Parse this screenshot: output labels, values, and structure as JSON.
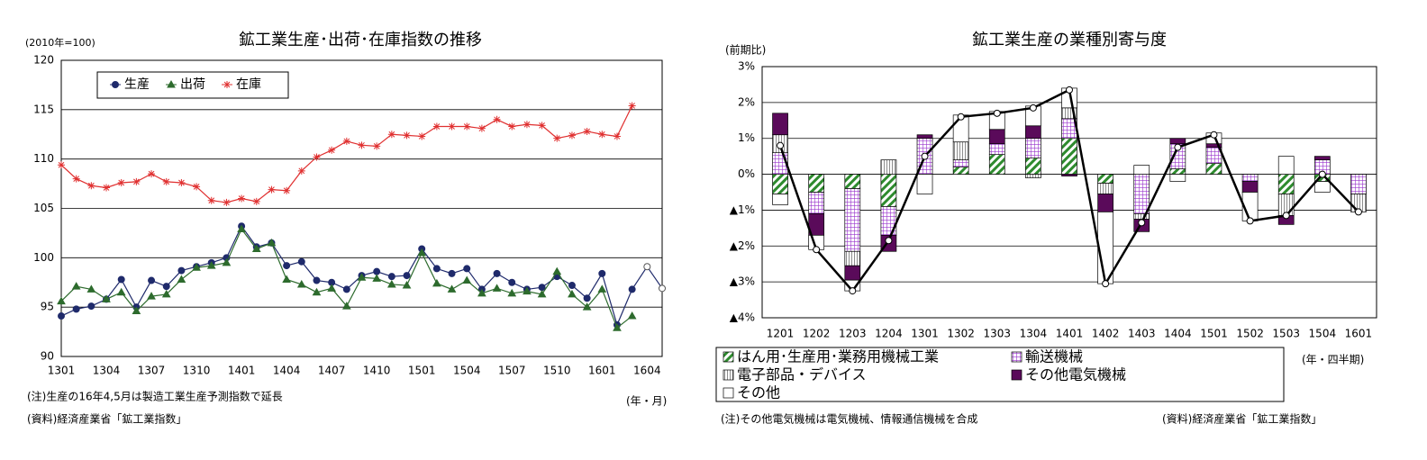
{
  "chart_data": [
    {
      "type": "line",
      "title": "鉱工業生産･出荷･在庫指数の推移",
      "y_label": "(2010年=100)",
      "x_label": "(年・月)",
      "notes": [
        "(注)生産の16年4,5月は製造工業生産予測指数で延長",
        "(資料)経済産業省「鉱工業指数」"
      ],
      "categories": [
        "1301",
        null,
        null,
        "1304",
        null,
        null,
        "1307",
        null,
        null,
        "1310",
        null,
        null,
        "1401",
        null,
        null,
        "1404",
        null,
        null,
        "1407",
        null,
        null,
        "1410",
        null,
        null,
        "1501",
        null,
        null,
        "1504",
        null,
        null,
        "1507",
        null,
        null,
        "1510",
        null,
        null,
        "1601",
        null,
        null,
        "1604",
        null
      ],
      "open_markers_from": "1604",
      "ylim": [
        90,
        120
      ],
      "yticks": [
        90,
        95,
        100,
        105,
        110,
        115,
        120
      ],
      "grid": true,
      "legend": "top-left",
      "series": [
        {
          "name": "生産",
          "color": "#1f2a6b",
          "marker": "circle",
          "values": [
            94.1,
            94.8,
            95.1,
            95.8,
            97.8,
            95.0,
            97.7,
            97.1,
            98.7,
            99.1,
            99.5,
            100.0,
            103.2,
            101.1,
            101.5,
            99.2,
            99.6,
            97.7,
            97.5,
            96.8,
            98.2,
            98.6,
            98.1,
            98.2,
            100.9,
            98.9,
            98.4,
            98.9,
            96.8,
            98.4,
            97.5,
            96.8,
            97.0,
            98.1,
            97.2,
            95.9,
            98.4,
            93.2,
            96.8,
            99.1,
            96.9
          ]
        },
        {
          "name": "出荷",
          "color": "#2d6b2d",
          "marker": "triangle",
          "values": [
            95.6,
            97.1,
            96.8,
            95.8,
            96.5,
            94.6,
            96.1,
            96.3,
            97.8,
            99.0,
            99.2,
            99.5,
            102.9,
            100.9,
            101.5,
            97.8,
            97.3,
            96.5,
            96.9,
            95.1,
            98.0,
            97.9,
            97.3,
            97.2,
            100.5,
            97.4,
            96.8,
            97.7,
            96.4,
            96.9,
            96.4,
            96.6,
            96.3,
            98.6,
            96.3,
            95.0,
            96.8,
            92.9,
            94.1,
            null,
            null
          ]
        },
        {
          "name": "在庫",
          "color": "#e03030",
          "marker": "star",
          "values": [
            109.4,
            108.0,
            107.3,
            107.1,
            107.6,
            107.7,
            108.5,
            107.7,
            107.6,
            107.2,
            105.8,
            105.6,
            106.0,
            105.7,
            106.9,
            106.8,
            108.8,
            110.2,
            110.9,
            111.8,
            111.4,
            111.3,
            112.5,
            112.4,
            112.3,
            113.3,
            113.3,
            113.3,
            113.1,
            114.0,
            113.3,
            113.5,
            113.4,
            112.1,
            112.4,
            112.8,
            112.5,
            112.3,
            115.4,
            null,
            null
          ]
        }
      ]
    },
    {
      "type": "stacked_bar",
      "title": "鉱工業生産の業種別寄与度",
      "y_label": "(前期比)",
      "x_label": "(年・四半期)",
      "notes": [
        "(注)その他電気機械は電気機械、情報通信機械を合成",
        "(資料)経済産業省「鉱工業指数」"
      ],
      "categories": [
        "1201",
        "1202",
        "1203",
        "1204",
        "1301",
        "1302",
        "1303",
        "1304",
        "1401",
        "1402",
        "1403",
        "1404",
        "1501",
        "1502",
        "1503",
        "1504",
        "1601"
      ],
      "ylim": [
        -4,
        3
      ],
      "yticks": [
        {
          "value": -4,
          "label": "▲4%"
        },
        {
          "value": -3,
          "label": "▲3%"
        },
        {
          "value": -2,
          "label": "▲2%"
        },
        {
          "value": -1,
          "label": "▲1%"
        },
        {
          "value": 0,
          "label": "0%"
        },
        {
          "value": 1,
          "label": "1%"
        },
        {
          "value": 2,
          "label": "2%"
        },
        {
          "value": 3,
          "label": "3%"
        }
      ],
      "grid": true,
      "legend": "bottom",
      "series": [
        {
          "name": "はん用･生産用･業務用機械工業",
          "color": "#2e8b2e",
          "pattern": "diagonal",
          "values": [
            -0.55,
            -0.5,
            -0.4,
            -0.9,
            0,
            0.2,
            0.55,
            0.45,
            1.0,
            -0.25,
            0,
            0.15,
            0.3,
            0,
            -0.55,
            -0.2,
            0
          ]
        },
        {
          "name": "輸送機械",
          "color": "#9933cc",
          "pattern": "grid",
          "values": [
            0.6,
            -0.6,
            -1.75,
            -0.8,
            1.0,
            0.2,
            0.3,
            0.55,
            0.55,
            0,
            -1.1,
            0.7,
            0.45,
            -0.2,
            0,
            0.4,
            -0.55
          ]
        },
        {
          "name": "電子部品・デバイス",
          "color": "#444444",
          "pattern": "vertical",
          "values": [
            0.5,
            0,
            -0.4,
            0.4,
            0,
            0.5,
            0,
            -0.1,
            0.3,
            -0.3,
            -0.15,
            0,
            0,
            0,
            -0.6,
            0,
            -0.5
          ]
        },
        {
          "name": "その他電気機械",
          "color": "#5a0a5a",
          "pattern": "solid",
          "values": [
            0.6,
            -0.6,
            -0.4,
            -0.45,
            0.1,
            0,
            0.4,
            0.35,
            -0.05,
            -0.5,
            -0.35,
            0.15,
            0.1,
            -0.3,
            -0.25,
            0.1,
            0
          ]
        },
        {
          "name": "その他",
          "color": "#ffffff",
          "pattern": "none",
          "values": [
            -0.3,
            -0.4,
            -0.3,
            0,
            -0.55,
            0.75,
            0.5,
            0.55,
            0.55,
            -2.0,
            0.25,
            -0.2,
            0.3,
            -0.8,
            0.5,
            -0.3,
            0
          ]
        }
      ],
      "line": {
        "color": "#000000",
        "values": [
          0.8,
          -2.1,
          -3.25,
          -1.85,
          0.5,
          1.6,
          1.7,
          1.85,
          2.35,
          -3.05,
          -1.35,
          0.75,
          1.1,
          -1.3,
          -1.15,
          0.0,
          -1.05
        ]
      }
    }
  ]
}
